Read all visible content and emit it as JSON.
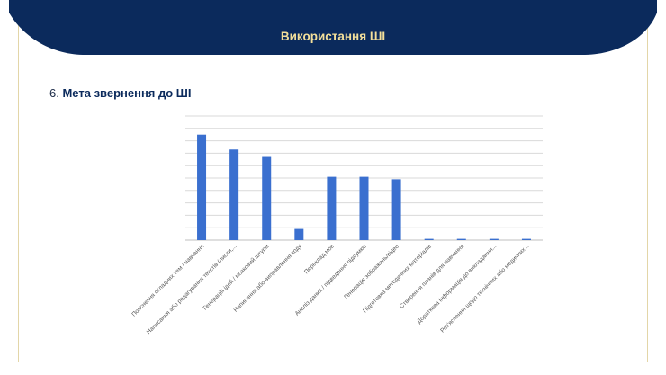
{
  "header": {
    "title": "Використання ШІ"
  },
  "section": {
    "number": "6.",
    "title": "Мета звернення до ШІ"
  },
  "colors": {
    "navy": "#0b2a5c",
    "accent_gold": "#f3df9a",
    "bar": "#3a6fcf",
    "grid": "#d9d9d9"
  },
  "chart_data": {
    "type": "bar",
    "title": "",
    "xlabel": "",
    "ylabel": "",
    "grid": true,
    "legend": "none",
    "categories": [
      "Пояснення складних тем / навчання",
      "Написання або редагування текстів (листи,...",
      "Генерація ідей / мозковий штурм",
      "Написання або виправлення коду",
      "Переклад мов",
      "Аналіз даних / підведення підсумків",
      "Генерація зображень/відео",
      "Підготовка методичних матеріалів",
      "Створення планів для навчання",
      "Додаткова інформація до викладання...",
      "Роз'яснення щодо технічних або медичних..."
    ],
    "values": [
      85,
      73,
      67,
      9,
      51,
      51,
      49,
      1,
      1,
      1,
      1
    ],
    "ylim": [
      0,
      100
    ]
  }
}
